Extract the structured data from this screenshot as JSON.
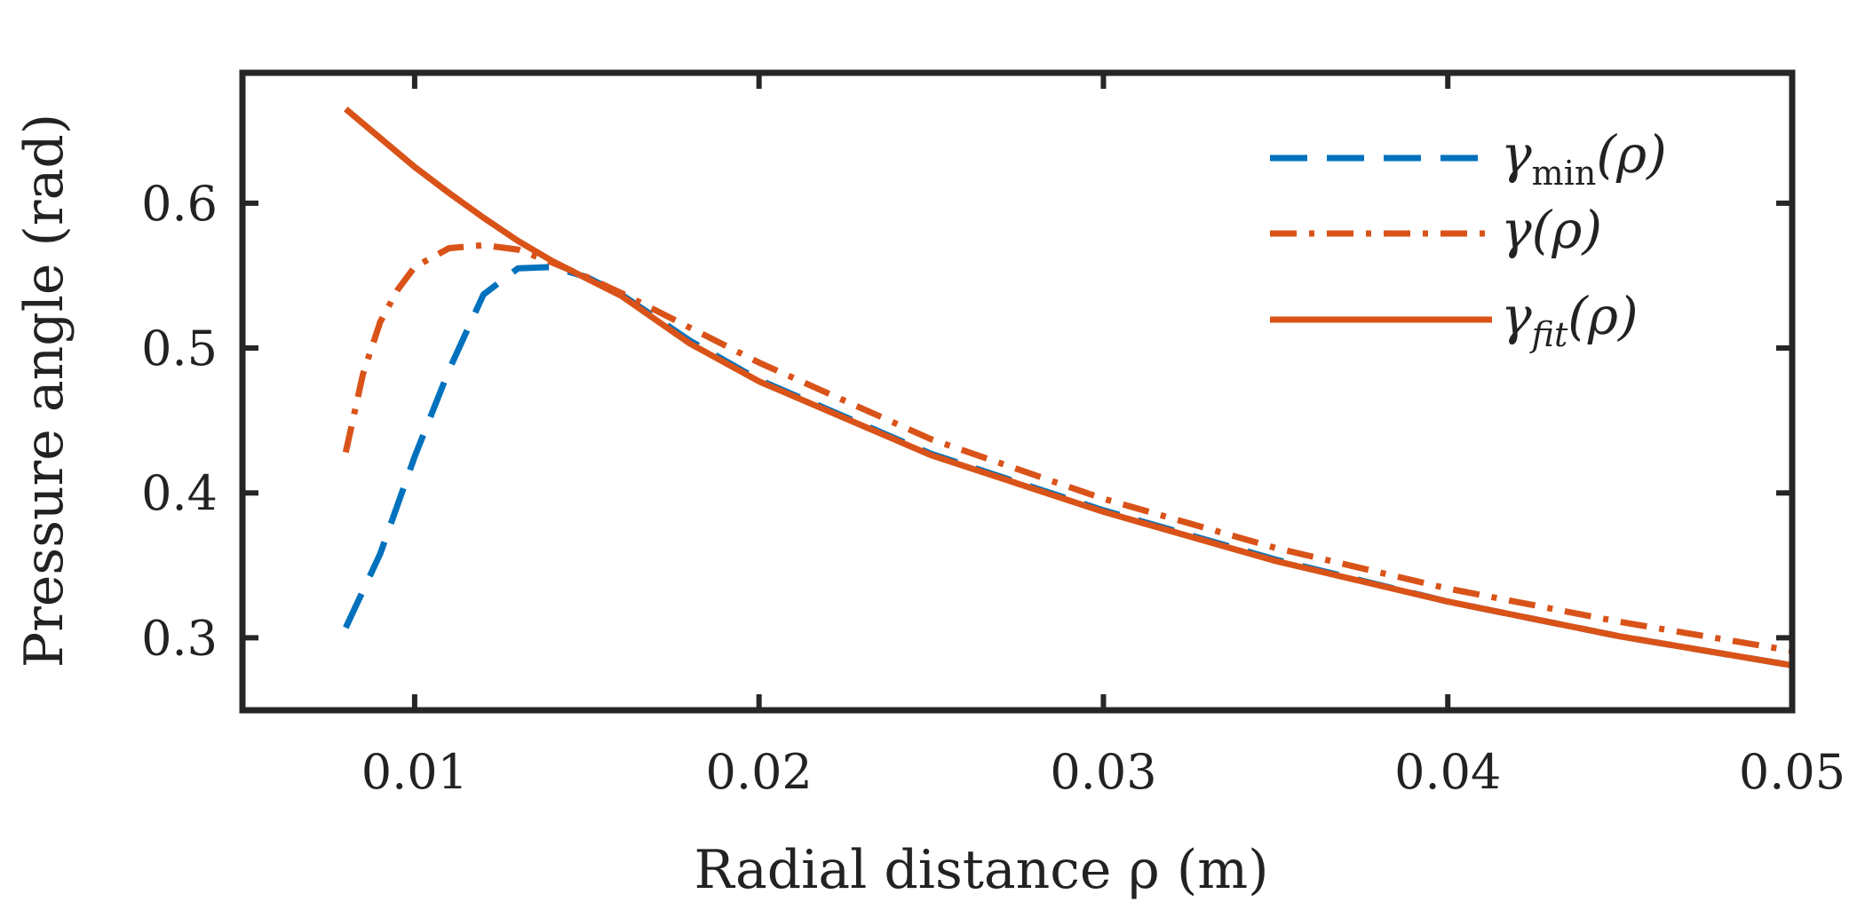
{
  "chart_data": {
    "type": "line",
    "title": "",
    "xlabel": "Radial distance ρ (m)",
    "ylabel": "Pressure angle (rad)",
    "xlim": [
      0.005,
      0.05
    ],
    "ylim": [
      0.25,
      0.69
    ],
    "xticks": [
      0.01,
      0.02,
      0.03,
      0.04,
      0.05
    ],
    "xtick_labels": [
      "0.01",
      "0.02",
      "0.03",
      "0.04",
      "0.05"
    ],
    "yticks": [
      0.3,
      0.4,
      0.5,
      0.6
    ],
    "ytick_labels": [
      "0.3",
      "0.4",
      "0.5",
      "0.6"
    ],
    "grid": false,
    "legend_position": "top-right",
    "series": [
      {
        "name": "γmin(ρ)",
        "label_main": "γ",
        "label_sub": "min",
        "label_tail": "(ρ)",
        "color": "#0072BD",
        "style": "dashed",
        "x": [
          0.008,
          0.009,
          0.01,
          0.011,
          0.012,
          0.013,
          0.014,
          0.015,
          0.016,
          0.018,
          0.02,
          0.025,
          0.03,
          0.035,
          0.04,
          0.045,
          0.05
        ],
        "y": [
          0.307,
          0.358,
          0.425,
          0.485,
          0.537,
          0.555,
          0.556,
          0.549,
          0.537,
          0.505,
          0.478,
          0.427,
          0.388,
          0.354,
          0.325,
          0.301,
          0.281
        ]
      },
      {
        "name": "γ(ρ)",
        "label_main": "γ",
        "label_sub": "",
        "label_tail": "(ρ)",
        "color": "#D95319",
        "style": "dashdot",
        "x": [
          0.008,
          0.0085,
          0.009,
          0.0095,
          0.01,
          0.011,
          0.012,
          0.013,
          0.014,
          0.015,
          0.016,
          0.018,
          0.02,
          0.025,
          0.03,
          0.035,
          0.04,
          0.045,
          0.05
        ],
        "y": [
          0.428,
          0.482,
          0.518,
          0.54,
          0.556,
          0.569,
          0.571,
          0.568,
          0.559,
          0.549,
          0.538,
          0.514,
          0.49,
          0.437,
          0.396,
          0.362,
          0.334,
          0.311,
          0.291
        ]
      },
      {
        "name": "γfit(ρ)",
        "label_main": "γ",
        "label_sub": "fit",
        "label_tail": "(ρ)",
        "color": "#D95319",
        "style": "solid",
        "x": [
          0.008,
          0.009,
          0.01,
          0.011,
          0.012,
          0.013,
          0.014,
          0.015,
          0.016,
          0.018,
          0.02,
          0.025,
          0.03,
          0.035,
          0.04,
          0.045,
          0.05
        ],
        "y": [
          0.665,
          0.645,
          0.625,
          0.607,
          0.59,
          0.574,
          0.56,
          0.548,
          0.536,
          0.503,
          0.477,
          0.426,
          0.387,
          0.353,
          0.325,
          0.301,
          0.281
        ]
      }
    ]
  }
}
